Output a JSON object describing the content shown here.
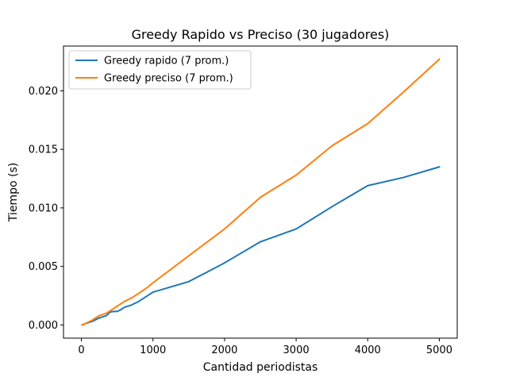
{
  "chart_data": {
    "type": "line",
    "title": "Greedy Rapido vs Preciso (30 jugadores)",
    "xlabel": "Cantidad periodistas",
    "ylabel": "Tiempo (s)",
    "xlim": [
      -250,
      5250
    ],
    "ylim": [
      -0.00113,
      0.02383
    ],
    "xticks": [
      0,
      1000,
      2000,
      3000,
      4000,
      5000
    ],
    "xtick_labels": [
      "0",
      "1000",
      "2000",
      "3000",
      "4000",
      "5000"
    ],
    "yticks": [
      0.0,
      0.005,
      0.01,
      0.015,
      0.02
    ],
    "ytick_labels": [
      "0.000",
      "0.005",
      "0.010",
      "0.015",
      "0.020"
    ],
    "grid": false,
    "legend_position": "top-left",
    "series": [
      {
        "name": "Greedy rapido  (7 prom.)",
        "color": "#1f77b4",
        "x": [
          10,
          50,
          100,
          150,
          200,
          250,
          300,
          350,
          400,
          450,
          500,
          550,
          600,
          700,
          800,
          900,
          1000,
          1500,
          2000,
          2500,
          3000,
          3500,
          4000,
          4500,
          5000
        ],
        "y": [
          0.0,
          0.0001,
          0.0002,
          0.0003,
          0.00045,
          0.0006,
          0.0007,
          0.0008,
          0.0011,
          0.00115,
          0.00115,
          0.0013,
          0.0015,
          0.0017,
          0.002,
          0.0024,
          0.0028,
          0.0037,
          0.0053,
          0.0071,
          0.0082,
          0.0101,
          0.0119,
          0.0126,
          0.0135
        ]
      },
      {
        "name": "Greedy preciso  (7 prom.)",
        "color": "#ff7f0e",
        "x": [
          10,
          50,
          100,
          150,
          200,
          250,
          300,
          350,
          400,
          450,
          500,
          550,
          600,
          700,
          800,
          900,
          1000,
          1500,
          2000,
          2500,
          3000,
          3500,
          4000,
          4500,
          5000
        ],
        "y": [
          0.0,
          8e-05,
          0.00025,
          0.0004,
          0.0006,
          0.0008,
          0.0009,
          0.001,
          0.0012,
          0.0014,
          0.0016,
          0.0018,
          0.002,
          0.0023,
          0.0027,
          0.0031,
          0.0036,
          0.0059,
          0.0082,
          0.0109,
          0.0128,
          0.0153,
          0.0172,
          0.0199,
          0.0227
        ]
      }
    ]
  }
}
